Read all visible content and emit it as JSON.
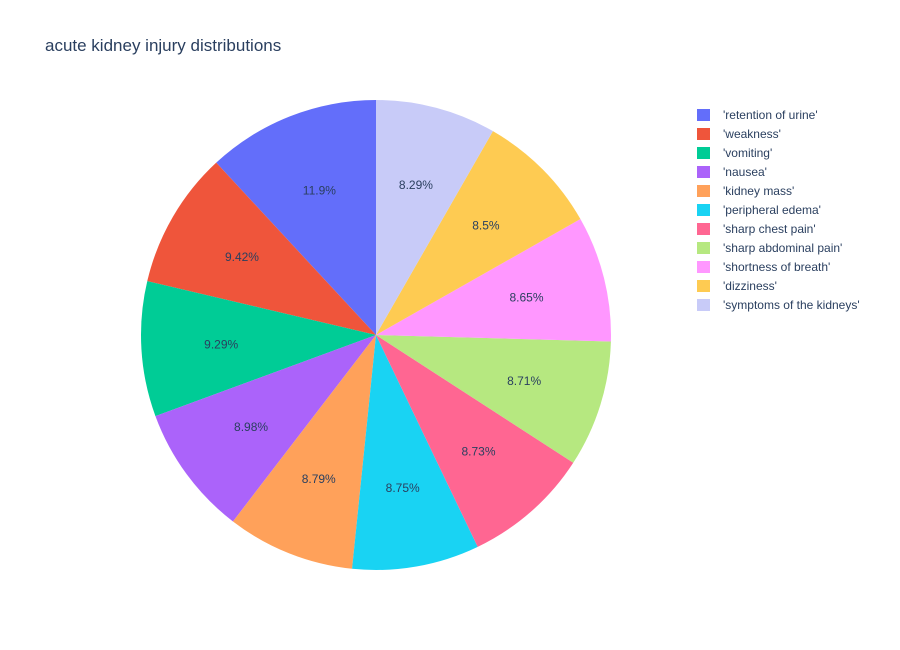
{
  "chart_data": {
    "type": "pie",
    "title": "acute kidney injury distributions",
    "labels": [
      "'retention of urine'",
      "'weakness'",
      "'vomiting'",
      "'nausea'",
      "'kidney mass'",
      "'peripheral edema'",
      "'sharp chest pain'",
      "'sharp abdominal pain'",
      "'shortness of breath'",
      "'dizziness'",
      "'symptoms of the kidneys'"
    ],
    "values": [
      11.9,
      9.42,
      9.29,
      8.98,
      8.79,
      8.75,
      8.73,
      8.71,
      8.65,
      8.5,
      8.29
    ],
    "value_labels": [
      "11.9%",
      "9.42%",
      "9.29%",
      "8.98%",
      "8.79%",
      "8.75%",
      "8.73%",
      "8.71%",
      "8.65%",
      "8.5%",
      "8.29%"
    ],
    "colors": [
      "#636efa",
      "#ef553b",
      "#00cc96",
      "#ab63fa",
      "#ffa15a",
      "#19d3f3",
      "#ff6692",
      "#b6e880",
      "#ff97ff",
      "#fecb52",
      "#c8cbf8"
    ],
    "direction": "counterclockwise",
    "start": "top",
    "legend_position": "right"
  }
}
